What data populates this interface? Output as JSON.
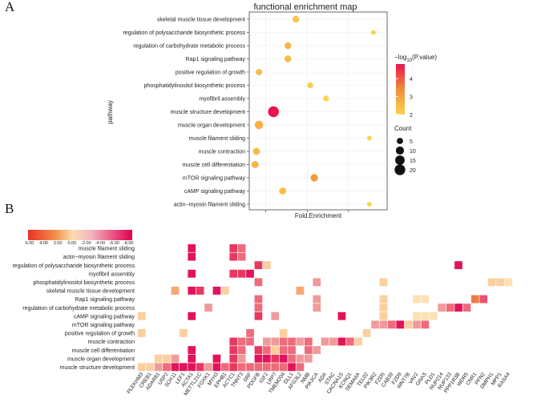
{
  "panel_labels": {
    "a": "A",
    "b": "B"
  },
  "chart_data": [
    {
      "type": "scatter",
      "subtype": "bubble",
      "title": "functional enrichment map",
      "xlabel": "Fold.Enrichment",
      "ylabel": "pathway",
      "x_tick_labels_visible": false,
      "x_range": [
        0.0,
        1.0
      ],
      "grid": true,
      "color_legend": {
        "title_prefix": "−log",
        "title_sub": "10",
        "title_suffix": "(P.value)",
        "ticks": [
          "4",
          "3",
          "2"
        ],
        "min": 2,
        "max": 4.8,
        "low_color": "#fbd34d",
        "high_color": "#e8154f"
      },
      "size_legend": {
        "title": "Count",
        "ticks": [
          "5",
          "10",
          "15",
          "20"
        ]
      },
      "pathways": [
        {
          "name": "skeletal muscle tissue development",
          "x": 0.33,
          "count": 6,
          "logp": 2.3
        },
        {
          "name": "regulation of polysaccharide biosynthetic process",
          "x": 0.92,
          "count": 2,
          "logp": 2.0
        },
        {
          "name": "regulation of carbohydrate metabolic process",
          "x": 0.27,
          "count": 6,
          "logp": 2.6
        },
        {
          "name": "Rap1 signaling pathway",
          "x": 0.27,
          "count": 6,
          "logp": 2.5
        },
        {
          "name": "positive regulation of growth",
          "x": 0.05,
          "count": 5,
          "logp": 2.5
        },
        {
          "name": "phosphatidylinositol biosynthetic process",
          "x": 0.44,
          "count": 4,
          "logp": 2.1
        },
        {
          "name": "myofibril assembly",
          "x": 0.56,
          "count": 4,
          "logp": 2.0
        },
        {
          "name": "muscle structure development",
          "x": 0.16,
          "count": 21,
          "logp": 4.8
        },
        {
          "name": "muscle organ development",
          "x": 0.05,
          "count": 11,
          "logp": 2.7
        },
        {
          "name": "muscle filament sliding",
          "x": 0.89,
          "count": 2,
          "logp": 2.0
        },
        {
          "name": "muscle contraction",
          "x": 0.03,
          "count": 7,
          "logp": 2.5
        },
        {
          "name": "muscle cell differentiation",
          "x": 0.02,
          "count": 7,
          "logp": 2.6
        },
        {
          "name": "mTOR signaling pathway",
          "x": 0.47,
          "count": 8,
          "logp": 3.1
        },
        {
          "name": "cAMP signaling pathway",
          "x": 0.23,
          "count": 7,
          "logp": 2.4
        },
        {
          "name": "actin−myosin filament sliding",
          "x": 0.89,
          "count": 2,
          "logp": 2.0
        }
      ]
    },
    {
      "type": "heatmap",
      "color_scale": {
        "labels": [
          "6.00",
          "4.00",
          "2.00",
          "0.00",
          "-2.00",
          "-4.00",
          "-6.00",
          "-8.00"
        ]
      },
      "rows": [
        "muscle filament sliding",
        "actin−myosin filament sliding",
        "regulation of polysaccharide biosynthetic process",
        "myofibril assembly",
        "phosphatidylinositol biosynthetic process",
        "skeletal muscle tissue development",
        "Rap1 signaling pathway",
        "regulation of carbohydrate metabolic process",
        "cAMP signaling pathway",
        "mTOR signaling pathway",
        "positive regulation of growth",
        "muscle contraction",
        "muscle cell differentiation",
        "muscle organ development",
        "muscle structure development"
      ],
      "columns": [
        "PLEKHM3",
        "CREB1",
        "ADAR81",
        "USP2",
        "SOX11",
        "LEF1",
        "ACTA1",
        "METTL21C",
        "FOXK1",
        "MYH3",
        "EPHB1",
        "ACTC1",
        "TNNT3",
        "SRF",
        "PDGFB",
        "IGF2",
        "LRP7",
        "TMEM204",
        "DLL1",
        "AFG3L2",
        "NMB",
        "PIK3CA",
        "ADA",
        "STAC",
        "CACNA1S",
        "KCNQ1",
        "SEMA6A",
        "TEL02",
        "PIK3R2",
        "FZD5",
        "CAB39",
        "FZD9",
        "WNT7B",
        "VAV2",
        "GNAS",
        "PLD1",
        "NUP214",
        "NUP133",
        "PPP1R3B",
        "WDR5",
        "CNR1",
        "PFN2",
        "DMPH1",
        "MPP1",
        "RASA4"
      ],
      "cells": [
        [
          0,
          6,
          -6
        ],
        [
          0,
          11,
          -5
        ],
        [
          0,
          12,
          -3
        ],
        [
          1,
          6,
          -6
        ],
        [
          1,
          11,
          -5
        ],
        [
          1,
          12,
          -3
        ],
        [
          2,
          14,
          -5
        ],
        [
          2,
          15,
          1
        ],
        [
          2,
          38,
          -6
        ],
        [
          3,
          6,
          -6
        ],
        [
          3,
          11,
          -5
        ],
        [
          3,
          12,
          -5
        ],
        [
          3,
          13,
          -6
        ],
        [
          4,
          14,
          -3
        ],
        [
          4,
          21,
          -2
        ],
        [
          4,
          29,
          1
        ],
        [
          4,
          42,
          1
        ],
        [
          4,
          43,
          1
        ],
        [
          4,
          44,
          0
        ],
        [
          5,
          4,
          2
        ],
        [
          5,
          6,
          -6
        ],
        [
          5,
          7,
          -5
        ],
        [
          5,
          9,
          -6
        ],
        [
          5,
          10,
          1
        ],
        [
          5,
          19,
          2
        ],
        [
          6,
          14,
          -3
        ],
        [
          6,
          21,
          -2
        ],
        [
          6,
          29,
          1
        ],
        [
          6,
          33,
          0
        ],
        [
          6,
          34,
          0
        ],
        [
          6,
          40,
          4
        ],
        [
          6,
          41,
          -4
        ],
        [
          7,
          8,
          -2
        ],
        [
          7,
          14,
          -3
        ],
        [
          7,
          21,
          -2
        ],
        [
          7,
          29,
          1
        ],
        [
          7,
          36,
          -2
        ],
        [
          7,
          37,
          -3
        ],
        [
          7,
          38,
          -6
        ],
        [
          7,
          39,
          -3
        ],
        [
          8,
          0,
          1
        ],
        [
          8,
          6,
          -6
        ],
        [
          8,
          14,
          -5
        ],
        [
          8,
          16,
          -2
        ],
        [
          8,
          24,
          -6
        ],
        [
          8,
          29,
          1
        ],
        [
          8,
          33,
          0
        ],
        [
          8,
          34,
          0
        ],
        [
          8,
          35,
          0
        ],
        [
          9,
          28,
          -2
        ],
        [
          9,
          29,
          -2
        ],
        [
          9,
          30,
          -3
        ],
        [
          9,
          31,
          -6
        ],
        [
          9,
          32,
          1
        ],
        [
          9,
          33,
          -2
        ],
        [
          9,
          34,
          -3
        ],
        [
          10,
          0,
          1
        ],
        [
          10,
          5,
          1
        ],
        [
          10,
          13,
          -3
        ],
        [
          10,
          17,
          1
        ],
        [
          10,
          27,
          1
        ],
        [
          11,
          11,
          -5
        ],
        [
          11,
          12,
          -3
        ],
        [
          11,
          13,
          -3
        ],
        [
          11,
          15,
          -2
        ],
        [
          11,
          16,
          -2
        ],
        [
          11,
          17,
          -3
        ],
        [
          11,
          18,
          -3
        ],
        [
          11,
          19,
          -2
        ],
        [
          11,
          20,
          -3
        ],
        [
          11,
          22,
          -2
        ],
        [
          11,
          23,
          -2
        ],
        [
          11,
          24,
          -6
        ],
        [
          11,
          25,
          -3
        ],
        [
          11,
          26,
          1
        ],
        [
          12,
          6,
          -6
        ],
        [
          12,
          11,
          -5
        ],
        [
          12,
          12,
          -3
        ],
        [
          12,
          14,
          -5
        ],
        [
          12,
          15,
          -3
        ],
        [
          12,
          16,
          1
        ],
        [
          12,
          17,
          -3
        ],
        [
          12,
          18,
          -3
        ],
        [
          12,
          20,
          -3
        ],
        [
          12,
          21,
          -2
        ],
        [
          13,
          2,
          1
        ],
        [
          13,
          3,
          1
        ],
        [
          13,
          4,
          -2
        ],
        [
          13,
          6,
          -6
        ],
        [
          13,
          9,
          -6
        ],
        [
          13,
          11,
          -5
        ],
        [
          13,
          12,
          -2
        ],
        [
          13,
          14,
          -6
        ],
        [
          13,
          15,
          -6
        ],
        [
          13,
          16,
          -5
        ],
        [
          13,
          17,
          -6
        ],
        [
          13,
          18,
          -3
        ],
        [
          13,
          19,
          -2
        ],
        [
          13,
          20,
          -2
        ],
        [
          14,
          0,
          1
        ],
        [
          14,
          1,
          1
        ],
        [
          14,
          2,
          -2
        ],
        [
          14,
          3,
          -3
        ],
        [
          14,
          4,
          -6
        ],
        [
          14,
          5,
          -6
        ],
        [
          14,
          6,
          -6
        ],
        [
          14,
          7,
          -5
        ],
        [
          14,
          8,
          -2
        ],
        [
          14,
          9,
          -6
        ],
        [
          14,
          10,
          -3
        ],
        [
          14,
          11,
          -5
        ],
        [
          14,
          12,
          -3
        ],
        [
          14,
          13,
          -3
        ],
        [
          14,
          14,
          -3
        ],
        [
          14,
          15,
          -3
        ],
        [
          14,
          16,
          -3
        ],
        [
          14,
          17,
          -3
        ],
        [
          14,
          18,
          -6
        ],
        [
          14,
          19,
          -3
        ]
      ]
    }
  ]
}
